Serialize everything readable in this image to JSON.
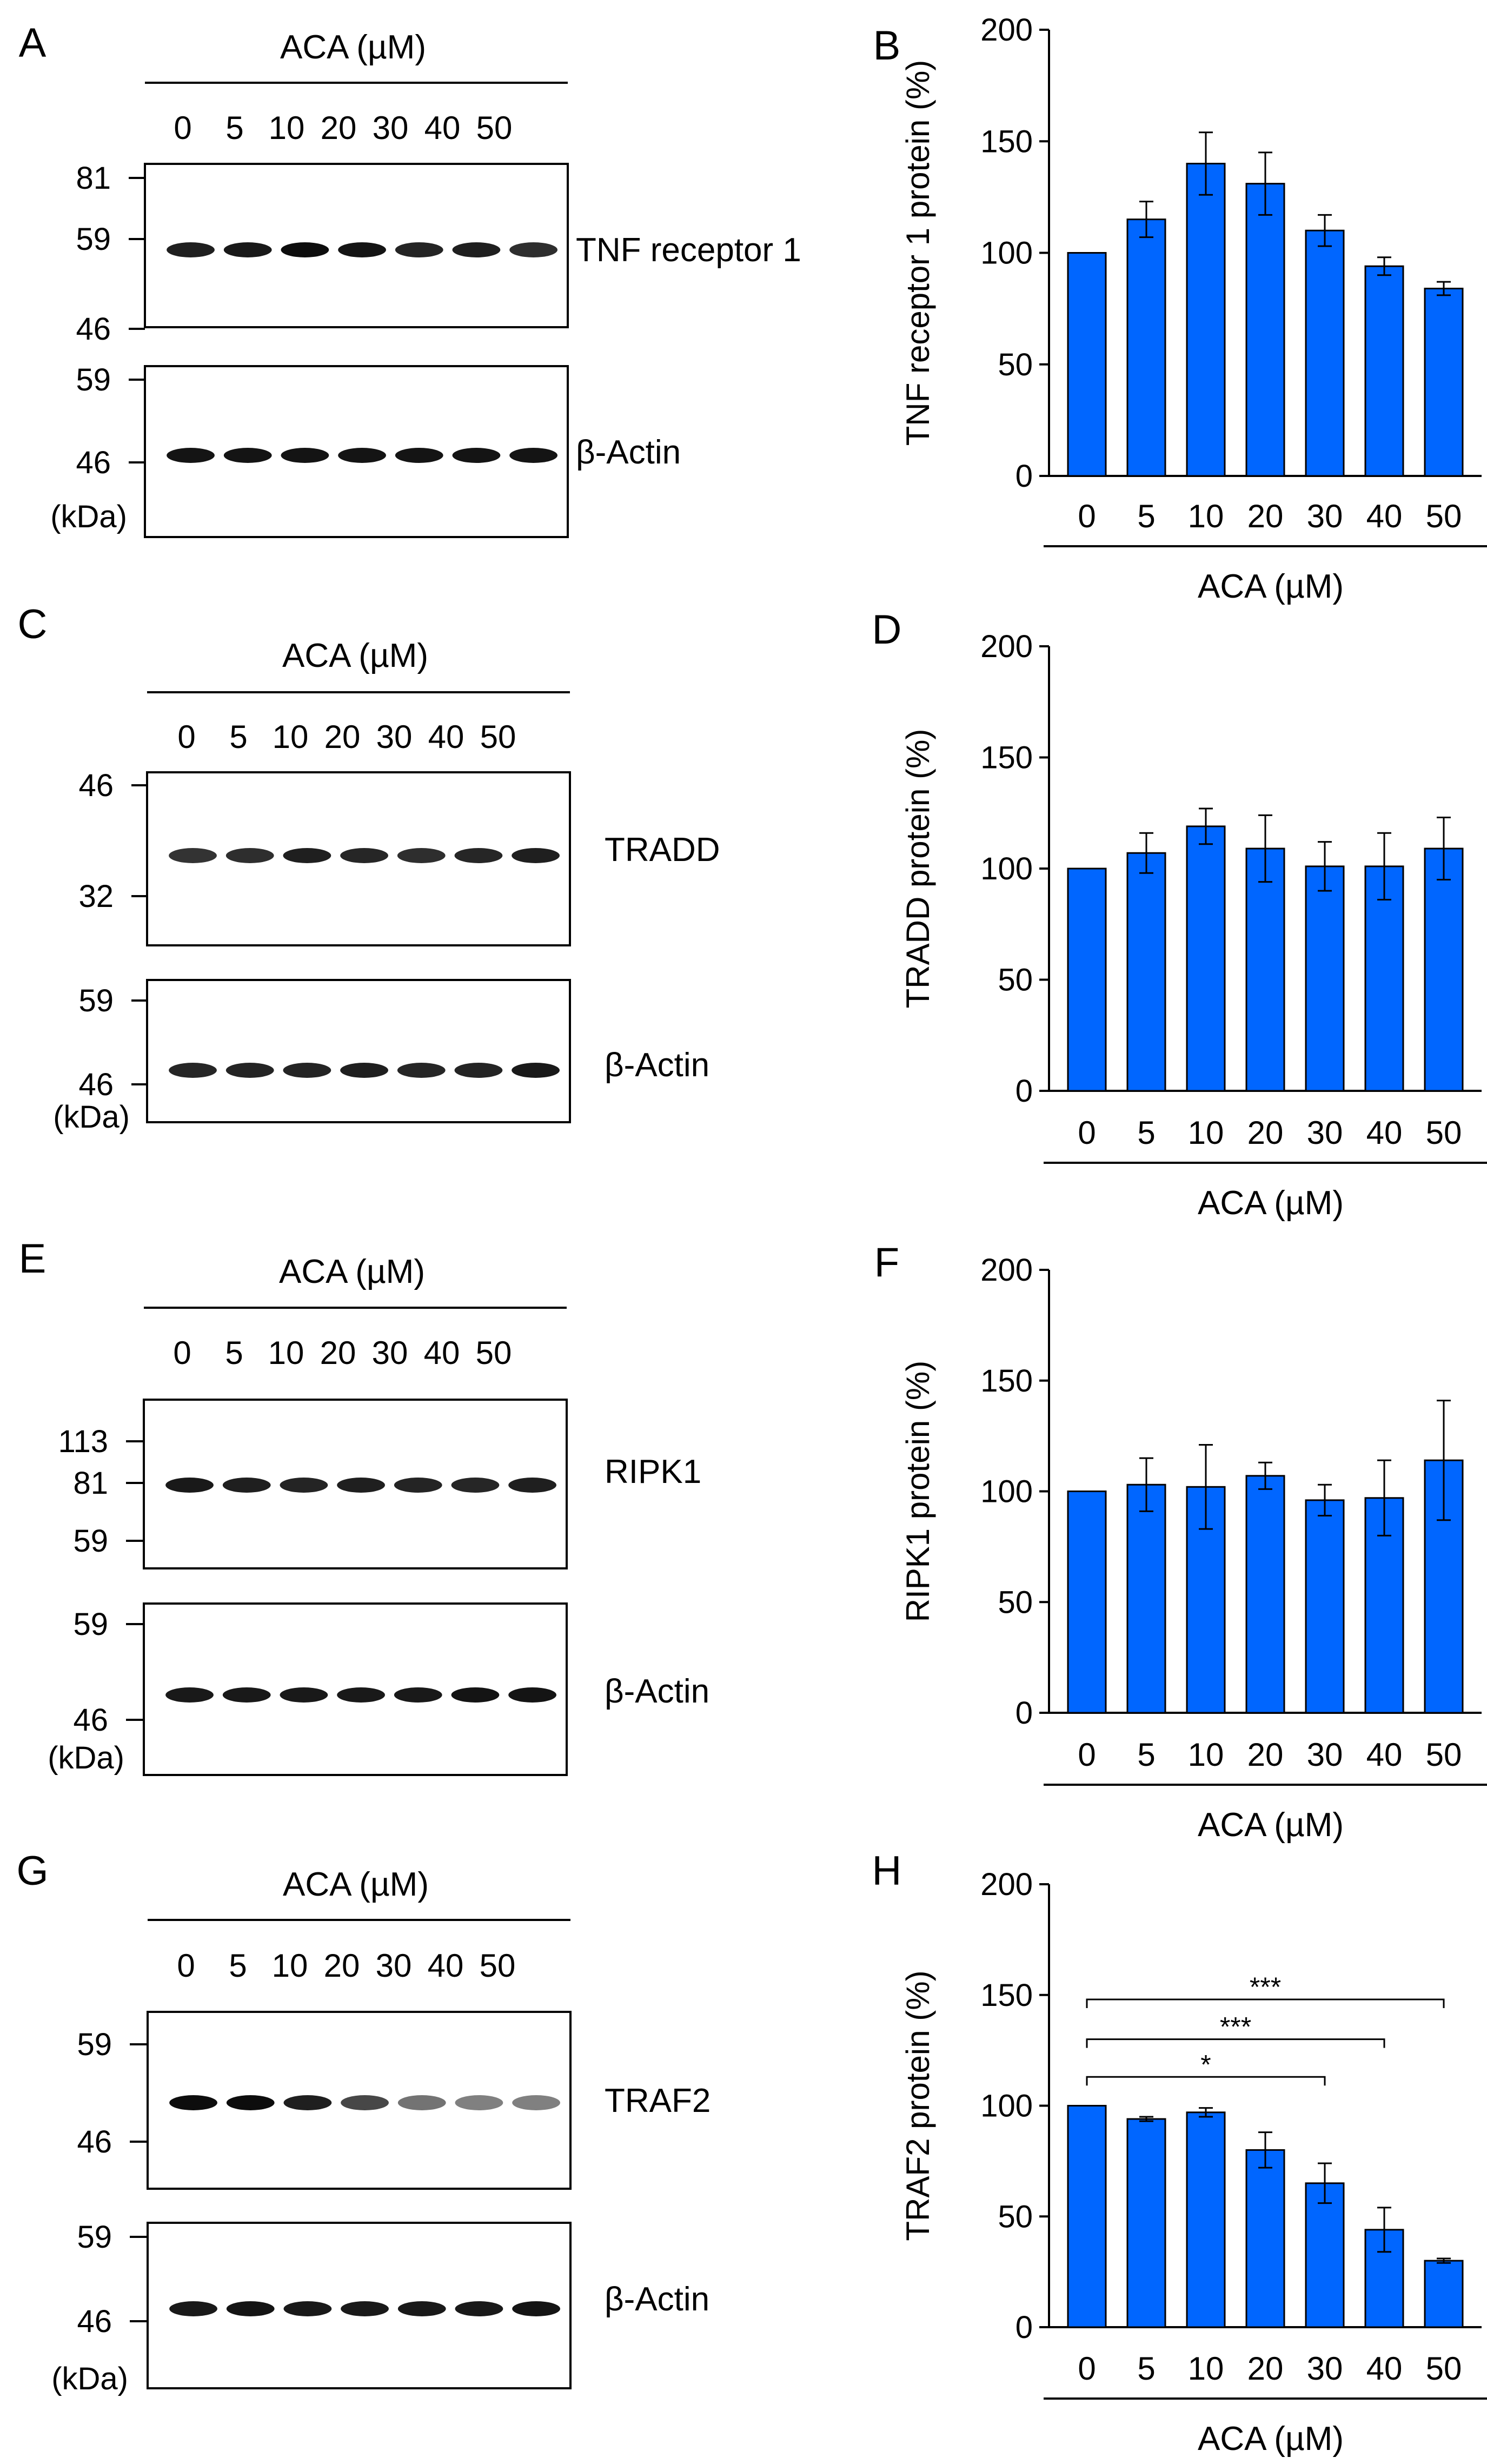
{
  "panels": [
    {
      "blot_letter": "A",
      "chart_letter": "B",
      "blot": {
        "header": "ACA (µM)",
        "lanes": [
          "0",
          "5",
          "10",
          "20",
          "30",
          "40",
          "50"
        ],
        "target_label": "TNF receptor 1",
        "target_markers": [
          "81",
          "59",
          "46"
        ],
        "actin_label": "β-Actin",
        "actin_markers": [
          "59",
          "46"
        ],
        "unit_label": "(kDa)",
        "band_intensity": [
          0.88,
          0.9,
          0.95,
          0.92,
          0.86,
          0.88,
          0.82
        ],
        "actin_intensity": [
          0.92,
          0.92,
          0.92,
          0.92,
          0.92,
          0.92,
          0.92
        ]
      }
    },
    {
      "blot_letter": "C",
      "chart_letter": "D",
      "blot": {
        "header": "ACA (µM)",
        "lanes": [
          "0",
          "5",
          "10",
          "20",
          "30",
          "40",
          "50"
        ],
        "target_label": "TRADD",
        "target_markers": [
          "46",
          "32"
        ],
        "actin_label": "β-Actin",
        "actin_markers": [
          "59",
          "46"
        ],
        "unit_label": "(kDa)",
        "band_intensity": [
          0.8,
          0.82,
          0.88,
          0.85,
          0.82,
          0.85,
          0.88
        ],
        "actin_intensity": [
          0.85,
          0.86,
          0.86,
          0.88,
          0.85,
          0.86,
          0.9
        ]
      }
    },
    {
      "blot_letter": "E",
      "chart_letter": "F",
      "blot": {
        "header": "ACA (µM)",
        "lanes": [
          "0",
          "5",
          "10",
          "20",
          "30",
          "40",
          "50"
        ],
        "target_label": "RIPK1",
        "target_markers": [
          "113",
          "81",
          "59"
        ],
        "actin_label": "β-Actin",
        "actin_markers": [
          "59",
          "46"
        ],
        "unit_label": "(kDa)",
        "band_intensity": [
          0.9,
          0.88,
          0.86,
          0.88,
          0.86,
          0.85,
          0.88
        ],
        "actin_intensity": [
          0.9,
          0.9,
          0.9,
          0.9,
          0.9,
          0.92,
          0.92
        ]
      }
    },
    {
      "blot_letter": "G",
      "chart_letter": "H",
      "blot": {
        "header": "ACA (µM)",
        "lanes": [
          "0",
          "5",
          "10",
          "20",
          "30",
          "40",
          "50"
        ],
        "target_label": "TRAF2",
        "target_markers": [
          "59",
          "46"
        ],
        "actin_label": "β-Actin",
        "actin_markers": [
          "59",
          "46"
        ],
        "unit_label": "(kDa)",
        "band_intensity": [
          0.95,
          0.95,
          0.88,
          0.72,
          0.55,
          0.5,
          0.5
        ],
        "actin_intensity": [
          0.9,
          0.92,
          0.9,
          0.9,
          0.9,
          0.9,
          0.92
        ]
      }
    }
  ],
  "chart_data": [
    {
      "type": "bar",
      "categories": [
        "0",
        "5",
        "10",
        "20",
        "30",
        "40",
        "50"
      ],
      "values": [
        100,
        115,
        140,
        131,
        110,
        94,
        84
      ],
      "errors": [
        0,
        8,
        14,
        14,
        7,
        4,
        3
      ],
      "ylabel": "TNF receptor 1 protein (%)",
      "xlabel": "ACA (µM)",
      "ylim": [
        0,
        200
      ],
      "yticks": [
        "0",
        "50",
        "100",
        "150",
        "200"
      ],
      "bar_color": "#0066ff",
      "significance": []
    },
    {
      "type": "bar",
      "categories": [
        "0",
        "5",
        "10",
        "20",
        "30",
        "40",
        "50"
      ],
      "values": [
        100,
        107,
        119,
        109,
        101,
        101,
        109
      ],
      "errors": [
        0,
        9,
        8,
        15,
        11,
        15,
        14
      ],
      "ylabel": "TRADD protein (%)",
      "xlabel": "ACA (µM)",
      "ylim": [
        0,
        200
      ],
      "yticks": [
        "0",
        "50",
        "100",
        "150",
        "200"
      ],
      "bar_color": "#0066ff",
      "significance": []
    },
    {
      "type": "bar",
      "categories": [
        "0",
        "5",
        "10",
        "20",
        "30",
        "40",
        "50"
      ],
      "values": [
        100,
        103,
        102,
        107,
        96,
        97,
        114
      ],
      "errors": [
        0,
        12,
        19,
        6,
        7,
        17,
        27
      ],
      "ylabel": "RIPK1 protein (%)",
      "xlabel": "ACA (µM)",
      "ylim": [
        0,
        200
      ],
      "yticks": [
        "0",
        "50",
        "100",
        "150",
        "200"
      ],
      "bar_color": "#0066ff",
      "significance": []
    },
    {
      "type": "bar",
      "categories": [
        "0",
        "5",
        "10",
        "20",
        "30",
        "40",
        "50"
      ],
      "values": [
        100,
        94,
        97,
        80,
        65,
        44,
        30
      ],
      "errors": [
        0,
        1,
        2,
        8,
        9,
        10,
        1
      ],
      "ylabel": "TRAF2 protein (%)",
      "xlabel": "ACA (µM)",
      "ylim": [
        0,
        200
      ],
      "yticks": [
        "0",
        "50",
        "100",
        "150",
        "200"
      ],
      "bar_color": "#0066ff",
      "significance": [
        {
          "from": 0,
          "to": 4,
          "label": "*",
          "y": 113
        },
        {
          "from": 0,
          "to": 5,
          "label": "***",
          "y": 130
        },
        {
          "from": 0,
          "to": 6,
          "label": "***",
          "y": 148
        }
      ]
    }
  ]
}
